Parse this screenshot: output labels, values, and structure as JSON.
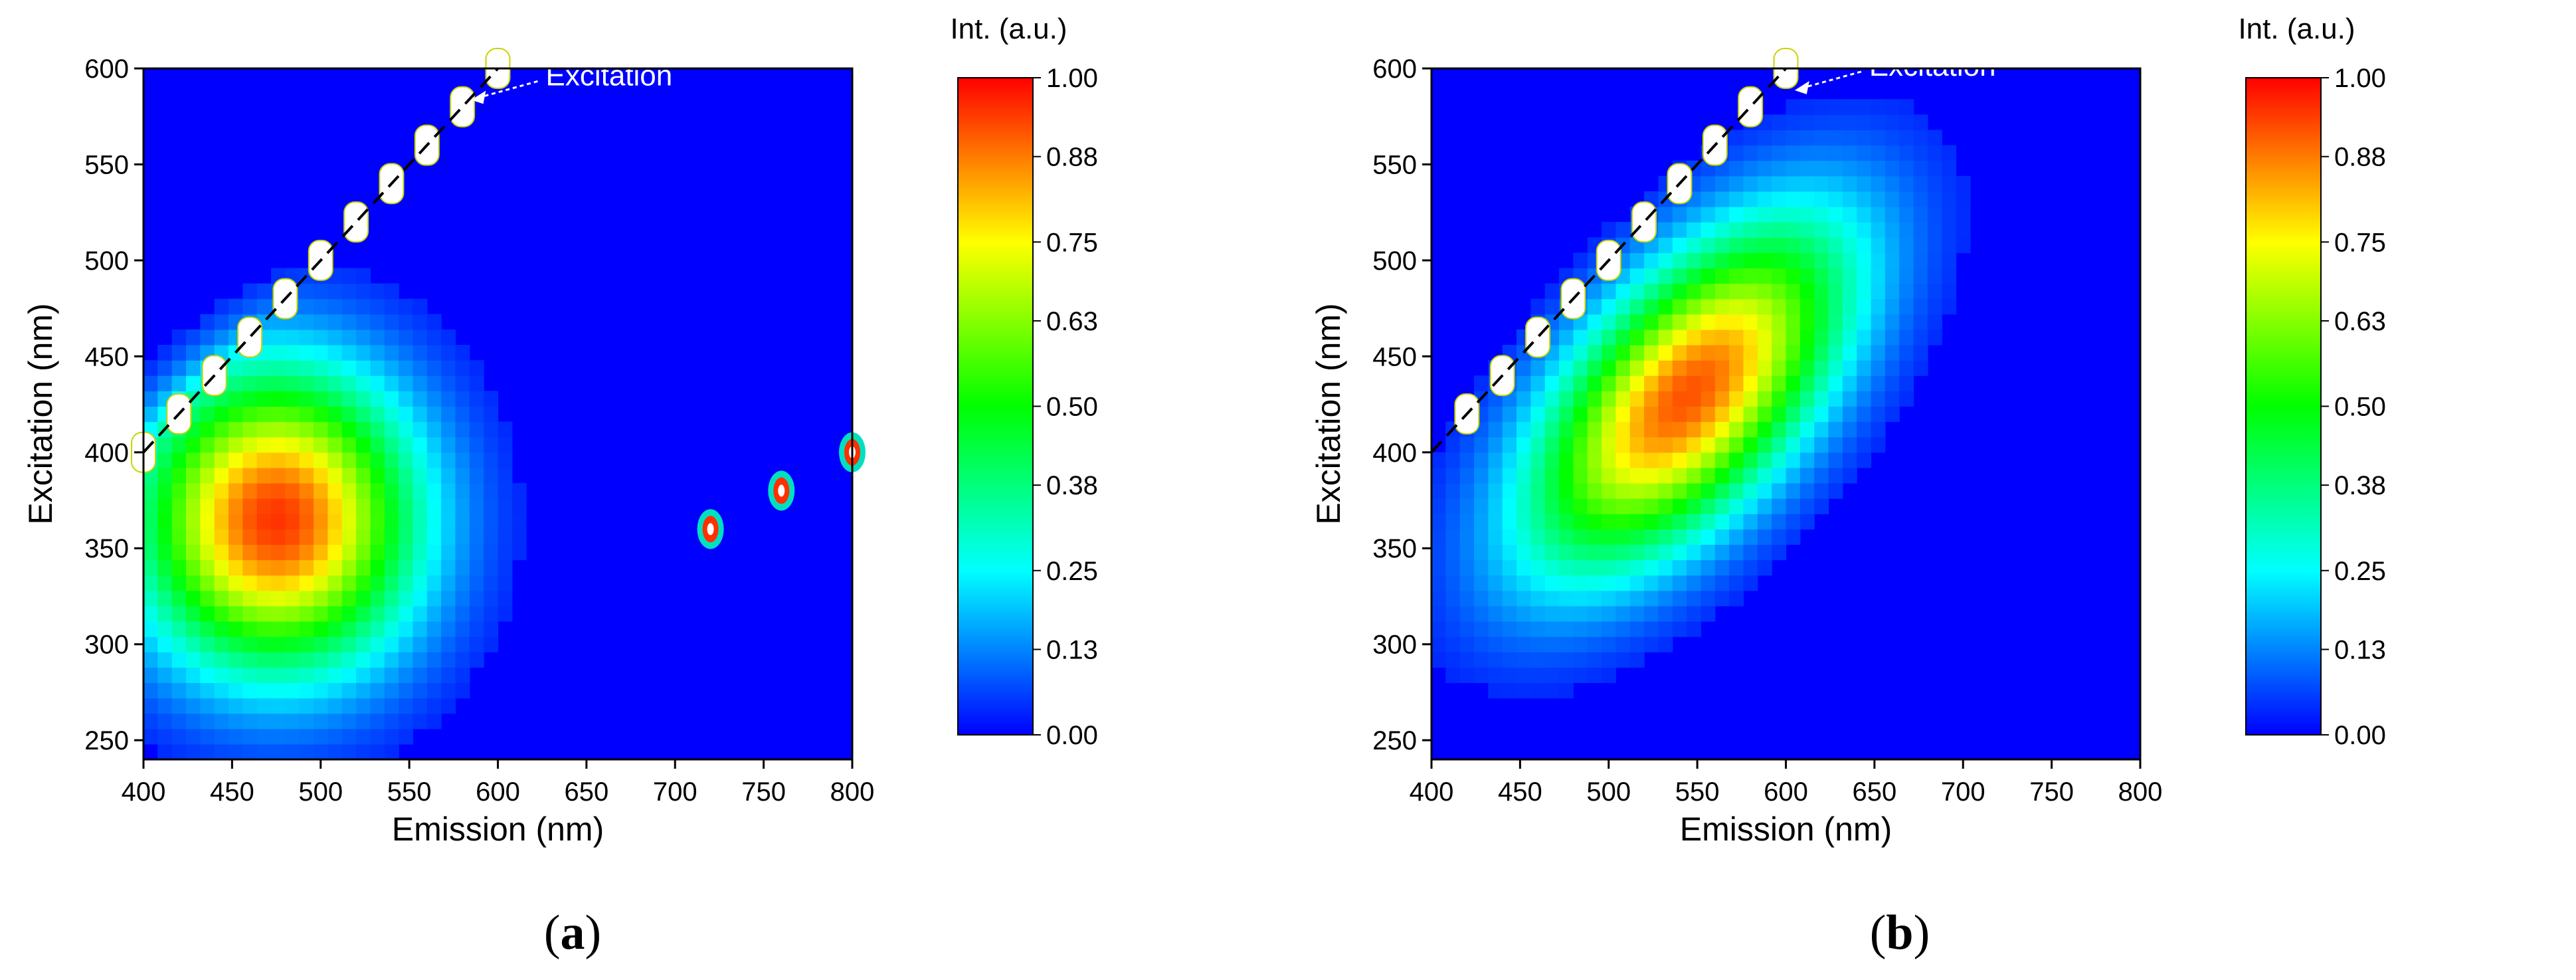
{
  "chart_data": [
    {
      "type": "heatmap",
      "panel_label": "a",
      "xlabel": "Emission (nm)",
      "ylabel": "Excitation (nm)",
      "xlim": [
        400,
        800
      ],
      "ylim": [
        240,
        600
      ],
      "x_ticks": [
        400,
        450,
        500,
        550,
        600,
        650,
        700,
        750,
        800
      ],
      "y_ticks": [
        250,
        300,
        350,
        400,
        450,
        500,
        550,
        600
      ],
      "colorbar": {
        "title": "Int. (a.u.)",
        "range": [
          0,
          1
        ],
        "ticks": [
          "1.00",
          "0.88",
          "0.75",
          "0.63",
          "0.50",
          "0.38",
          "0.25",
          "0.13",
          "0.00"
        ],
        "colormap": [
          "#0000ff",
          "#0080ff",
          "#00ffff",
          "#00ff80",
          "#00ff00",
          "#80ff00",
          "#ffff00",
          "#ff8000",
          "#ff0000"
        ]
      },
      "annotation": {
        "text": "Excitation",
        "arrow_to": [
          585,
          585
        ]
      },
      "diagonal_line": {
        "from": [
          400,
          400
        ],
        "to": [
          600,
          600
        ],
        "style": "dashed",
        "meaning": "excitation = emission"
      },
      "peaks": [
        {
          "emission": 475,
          "excitation": 365,
          "intensity": 0.95,
          "emission_spread": 55,
          "excitation_spread": 55
        }
      ],
      "scatter_artifacts": [
        {
          "emission": 720,
          "excitation": 360
        },
        {
          "emission": 760,
          "excitation": 380
        },
        {
          "emission": 800,
          "excitation": 400
        }
      ],
      "rayleigh_band": {
        "excitation_start": 400,
        "excitation_end": 600,
        "step": 20
      }
    },
    {
      "type": "heatmap",
      "panel_label": "b",
      "xlabel": "Emission (nm)",
      "ylabel": "Excitation (nm)",
      "xlim": [
        400,
        800
      ],
      "ylim": [
        240,
        600
      ],
      "x_ticks": [
        400,
        450,
        500,
        550,
        600,
        650,
        700,
        750,
        800
      ],
      "y_ticks": [
        250,
        300,
        350,
        400,
        450,
        500,
        550,
        600
      ],
      "colorbar": {
        "title": "Int. (a.u.)",
        "range": [
          0,
          1
        ],
        "ticks": [
          "1.00",
          "0.88",
          "0.75",
          "0.63",
          "0.50",
          "0.38",
          "0.25",
          "0.13",
          "0.00"
        ],
        "colormap": [
          "#0000ff",
          "#0080ff",
          "#00ffff",
          "#00ff80",
          "#00ff00",
          "#80ff00",
          "#ffff00",
          "#ff8000",
          "#ff0000"
        ]
      },
      "annotation": {
        "text": "Excitation",
        "arrow_to": [
          605,
          590
        ]
      },
      "diagonal_line": {
        "from": [
          400,
          400
        ],
        "to": [
          600,
          600
        ],
        "style": "dashed",
        "meaning": "excitation = emission"
      },
      "peaks": [
        {
          "emission": 545,
          "excitation": 430,
          "intensity": 0.92,
          "emission_spread": 70,
          "excitation_spread": 70,
          "orientation": "diagonal"
        }
      ],
      "scatter_artifacts": [],
      "rayleigh_band": {
        "excitation_start": 420,
        "excitation_end": 600,
        "step": 20
      }
    }
  ]
}
